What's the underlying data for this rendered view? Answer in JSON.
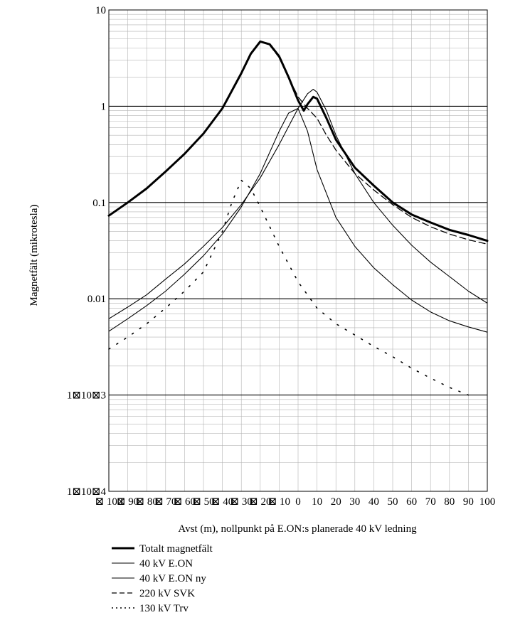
{
  "chart_data": {
    "type": "line",
    "xlabel": "Avst (m), nollpunkt på E.ON:s planerade 40 kV ledning",
    "ylabel": "Magnetfält (mikrotesla)",
    "y_scale": "log",
    "xlim": [
      -100,
      100
    ],
    "ylim": [
      0.0001,
      10
    ],
    "grid": true,
    "legend_position": "bottom-left",
    "x_tick_labels": [
      "⊠ 100",
      "⊠ 90",
      "⊠ 80",
      "⊠ 70",
      "⊠ 60",
      "⊠ 50",
      "⊠ 40",
      "⊠ 30",
      "⊠ 20",
      "⊠ 10",
      "0",
      "10",
      "20",
      "30",
      "40",
      "50",
      "60",
      "70",
      "80",
      "90",
      "100"
    ],
    "y_tick_labels": [
      "10",
      "1",
      "0.1",
      "0.01",
      "1⊠10⊠3",
      "1⊠10⊠4"
    ],
    "series": [
      {
        "name": "Totalt magnetfält",
        "style": "thick",
        "x": [
          -100,
          -90,
          -80,
          -70,
          -60,
          -50,
          -40,
          -30,
          -25,
          -20,
          -15,
          -10,
          -5,
          0,
          3,
          5,
          8,
          10,
          15,
          20,
          30,
          40,
          50,
          60,
          70,
          80,
          90,
          100
        ],
        "y": [
          0.073,
          0.1,
          0.14,
          0.21,
          0.32,
          0.52,
          0.95,
          2.2,
          3.5,
          4.7,
          4.4,
          3.3,
          2.0,
          1.15,
          0.9,
          1.05,
          1.25,
          1.2,
          0.75,
          0.45,
          0.23,
          0.15,
          0.1,
          0.075,
          0.062,
          0.052,
          0.046,
          0.04
        ]
      },
      {
        "name": "40 kV E.ON",
        "style": "thin",
        "x": [
          -100,
          -90,
          -80,
          -70,
          -60,
          -50,
          -40,
          -30,
          -20,
          -10,
          -5,
          0,
          5,
          10,
          20,
          30,
          40,
          50,
          60,
          70,
          80,
          90,
          100
        ],
        "y": [
          0.0046,
          0.0062,
          0.0085,
          0.012,
          0.018,
          0.028,
          0.047,
          0.09,
          0.2,
          0.55,
          0.85,
          0.95,
          0.55,
          0.22,
          0.07,
          0.035,
          0.021,
          0.014,
          0.0097,
          0.0073,
          0.0059,
          0.0051,
          0.0045
        ]
      },
      {
        "name": "40 kV E.ON ny",
        "style": "thin",
        "x": [
          -100,
          -90,
          -80,
          -70,
          -60,
          -50,
          -40,
          -30,
          -20,
          -10,
          0,
          5,
          8,
          10,
          15,
          20,
          30,
          40,
          50,
          60,
          70,
          80,
          90,
          100
        ],
        "y": [
          0.0062,
          0.0082,
          0.011,
          0.016,
          0.023,
          0.035,
          0.055,
          0.095,
          0.18,
          0.4,
          0.95,
          1.35,
          1.5,
          1.4,
          0.9,
          0.5,
          0.2,
          0.1,
          0.058,
          0.036,
          0.024,
          0.017,
          0.012,
          0.009
        ]
      },
      {
        "name": "220 kV SVK",
        "style": "dashed",
        "x": [
          -15,
          -10,
          -5,
          0,
          5,
          10,
          15,
          20,
          30,
          40,
          50,
          60,
          70,
          80,
          90,
          100
        ],
        "y": [
          4.3,
          3.2,
          2.0,
          1.25,
          0.95,
          0.75,
          0.5,
          0.35,
          0.2,
          0.135,
          0.095,
          0.07,
          0.056,
          0.047,
          0.041,
          0.037
        ]
      },
      {
        "name": "130 kV Trv",
        "style": "dotted",
        "x": [
          -100,
          -90,
          -80,
          -70,
          -60,
          -50,
          -40,
          -35,
          -30,
          -25,
          -20,
          -10,
          0,
          10,
          20,
          30,
          40,
          50,
          60,
          70,
          80,
          90
        ],
        "y": [
          0.003,
          0.004,
          0.0055,
          0.008,
          0.012,
          0.019,
          0.05,
          0.1,
          0.17,
          0.14,
          0.09,
          0.035,
          0.015,
          0.008,
          0.0055,
          0.0042,
          0.0032,
          0.0025,
          0.0019,
          0.0015,
          0.0012,
          0.001
        ]
      }
    ]
  }
}
